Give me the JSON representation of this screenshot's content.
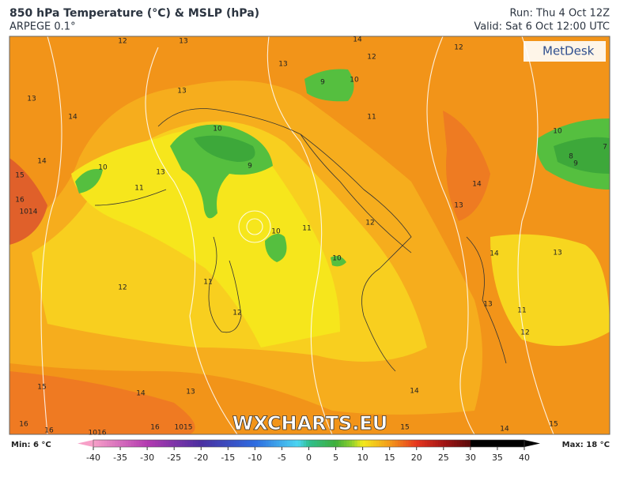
{
  "header": {
    "title": "850 hPa Temperature (°C) & MSLP (hPa)",
    "model": "ARPEGE 0.1°",
    "run": "Run: Thu 4 Oct 12Z",
    "valid": "Valid: Sat 6 Oct 12:00 UTC"
  },
  "logo": "MetDesk",
  "watermark": "WXCHARTS.EU",
  "contour_labels": [
    12,
    13,
    14,
    12,
    13,
    12,
    13,
    14,
    13,
    10,
    9,
    9,
    10,
    11,
    15,
    14,
    10,
    11,
    13,
    16,
    1014,
    10,
    11,
    12,
    14,
    13,
    10,
    8,
    9,
    7,
    10,
    14,
    13,
    11,
    12,
    12,
    13,
    11,
    12,
    15,
    14,
    13,
    14,
    16,
    16,
    16,
    1016,
    1015,
    15,
    14,
    15
  ],
  "legend": {
    "min_label": "Min: 6 °C",
    "max_label": "Max: 18 °C",
    "ticks": [
      -40,
      -35,
      -30,
      -25,
      -20,
      -15,
      -10,
      -5,
      0,
      5,
      10,
      15,
      20,
      25,
      30,
      35,
      40
    ]
  }
}
